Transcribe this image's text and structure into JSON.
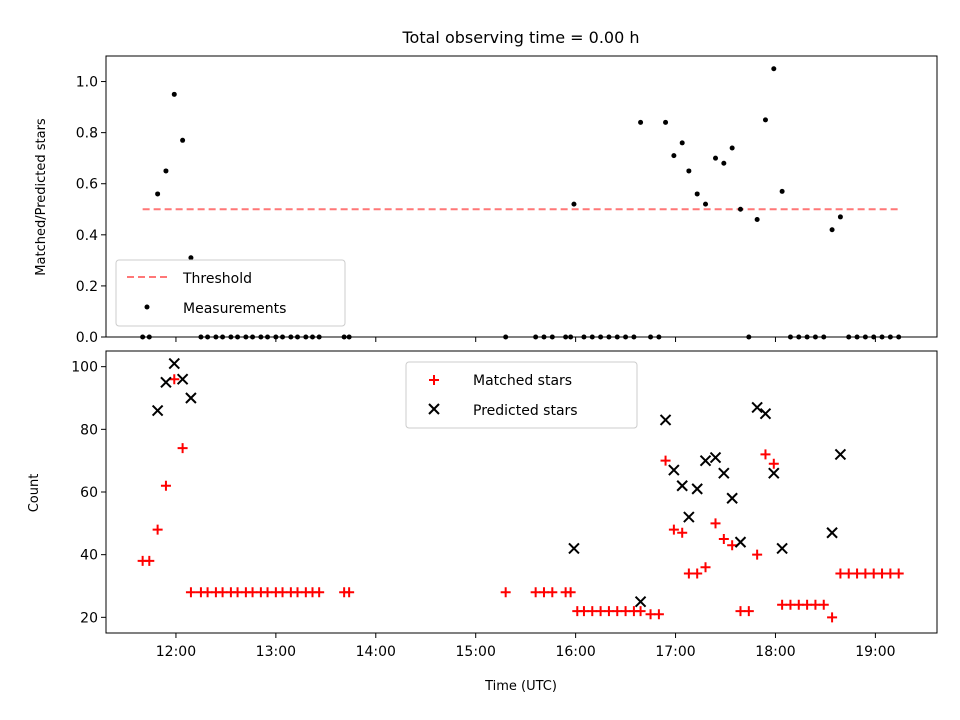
{
  "figure": {
    "title": "Total observing time = 0.00 h"
  },
  "chart_data": [
    {
      "type": "scatter",
      "ylabel": "Matched/Predicted stars",
      "ylim": [
        0,
        1.1
      ],
      "yticks": [
        0.0,
        0.2,
        0.4,
        0.6,
        0.8,
        1.0
      ],
      "ytick_labels": [
        "0.0",
        "0.2",
        "0.4",
        "0.6",
        "0.8",
        "1.0"
      ],
      "xlim": [
        "11:18",
        "19:37"
      ],
      "grid": false,
      "legend_position": "lower-left",
      "threshold": {
        "name": "Threshold",
        "value": 0.5,
        "x": [
          "11:40",
          "19:15"
        ],
        "color": "#ff7777"
      },
      "series": [
        {
          "name": "Measurements",
          "color": "#000000",
          "marker": "dot",
          "points": [
            [
              "11:40",
              0
            ],
            [
              "11:44",
              0
            ],
            [
              "11:49",
              0.56
            ],
            [
              "11:54",
              0.65
            ],
            [
              "11:59",
              0.95
            ],
            [
              "12:04",
              0.77
            ],
            [
              "12:09",
              0.31
            ],
            [
              "12:15",
              0
            ],
            [
              "12:19",
              0
            ],
            [
              "12:24",
              0
            ],
            [
              "12:28",
              0
            ],
            [
              "12:33",
              0
            ],
            [
              "12:37",
              0
            ],
            [
              "12:42",
              0
            ],
            [
              "12:46",
              0
            ],
            [
              "12:51",
              0
            ],
            [
              "12:55",
              0
            ],
            [
              "13:00",
              0
            ],
            [
              "13:04",
              0
            ],
            [
              "13:09",
              0
            ],
            [
              "13:13",
              0
            ],
            [
              "13:18",
              0
            ],
            [
              "13:22",
              0
            ],
            [
              "13:26",
              0
            ],
            [
              "13:41",
              0
            ],
            [
              "13:44",
              0
            ],
            [
              "15:18",
              0
            ],
            [
              "15:36",
              0
            ],
            [
              "15:41",
              0
            ],
            [
              "15:46",
              0
            ],
            [
              "15:54",
              0
            ],
            [
              "15:57",
              0
            ],
            [
              "15:59",
              0.52
            ],
            [
              "16:05",
              0
            ],
            [
              "16:10",
              0
            ],
            [
              "16:15",
              0
            ],
            [
              "16:20",
              0
            ],
            [
              "16:25",
              0
            ],
            [
              "16:30",
              0
            ],
            [
              "16:35",
              0
            ],
            [
              "16:39",
              0.84
            ],
            [
              "16:45",
              0
            ],
            [
              "16:50",
              0
            ],
            [
              "16:54",
              0.84
            ],
            [
              "16:59",
              0.71
            ],
            [
              "17:04",
              0.76
            ],
            [
              "17:08",
              0.65
            ],
            [
              "17:13",
              0.56
            ],
            [
              "17:18",
              0.52
            ],
            [
              "17:24",
              0.7
            ],
            [
              "17:29",
              0.68
            ],
            [
              "17:34",
              0.74
            ],
            [
              "17:39",
              0.5
            ],
            [
              "17:44",
              0
            ],
            [
              "17:49",
              0.46
            ],
            [
              "17:54",
              0.85
            ],
            [
              "17:59",
              1.05
            ],
            [
              "18:04",
              0.57
            ],
            [
              "18:09",
              0
            ],
            [
              "18:14",
              0
            ],
            [
              "18:19",
              0
            ],
            [
              "18:24",
              0
            ],
            [
              "18:29",
              0
            ],
            [
              "18:34",
              0.42
            ],
            [
              "18:39",
              0.47
            ],
            [
              "18:44",
              0
            ],
            [
              "18:49",
              0
            ],
            [
              "18:54",
              0
            ],
            [
              "18:59",
              0
            ],
            [
              "19:04",
              0
            ],
            [
              "19:09",
              0
            ],
            [
              "19:14",
              0
            ]
          ]
        }
      ]
    },
    {
      "type": "scatter",
      "xlabel": "Time (UTC)",
      "ylabel": "Count",
      "ylim": [
        15,
        105
      ],
      "yticks": [
        20,
        40,
        60,
        80,
        100
      ],
      "ytick_labels": [
        "20",
        "40",
        "60",
        "80",
        "100"
      ],
      "xlim": [
        "11:18",
        "19:37"
      ],
      "xticks": [
        "12:00",
        "13:00",
        "14:00",
        "15:00",
        "16:00",
        "17:00",
        "18:00",
        "19:00"
      ],
      "xtick_labels": [
        "12:00",
        "13:00",
        "14:00",
        "15:00",
        "16:00",
        "17:00",
        "18:00",
        "19:00"
      ],
      "grid": false,
      "legend_position": "upper-center",
      "series": [
        {
          "name": "Matched stars",
          "color": "#ff0000",
          "marker": "plus",
          "points": [
            [
              "11:40",
              38
            ],
            [
              "11:44",
              38
            ],
            [
              "11:49",
              48
            ],
            [
              "11:54",
              62
            ],
            [
              "11:59",
              96
            ],
            [
              "12:04",
              74
            ],
            [
              "12:09",
              28
            ],
            [
              "12:15",
              28
            ],
            [
              "12:19",
              28
            ],
            [
              "12:24",
              28
            ],
            [
              "12:28",
              28
            ],
            [
              "12:33",
              28
            ],
            [
              "12:37",
              28
            ],
            [
              "12:42",
              28
            ],
            [
              "12:46",
              28
            ],
            [
              "12:51",
              28
            ],
            [
              "12:55",
              28
            ],
            [
              "13:00",
              28
            ],
            [
              "13:04",
              28
            ],
            [
              "13:09",
              28
            ],
            [
              "13:13",
              28
            ],
            [
              "13:18",
              28
            ],
            [
              "13:22",
              28
            ],
            [
              "13:26",
              28
            ],
            [
              "13:41",
              28
            ],
            [
              "13:44",
              28
            ],
            [
              "15:18",
              28
            ],
            [
              "15:36",
              28
            ],
            [
              "15:41",
              28
            ],
            [
              "15:46",
              28
            ],
            [
              "15:54",
              28
            ],
            [
              "15:57",
              28
            ],
            [
              "16:01",
              22
            ],
            [
              "16:05",
              22
            ],
            [
              "16:10",
              22
            ],
            [
              "16:15",
              22
            ],
            [
              "16:20",
              22
            ],
            [
              "16:25",
              22
            ],
            [
              "16:30",
              22
            ],
            [
              "16:35",
              22
            ],
            [
              "16:39",
              22
            ],
            [
              "16:45",
              21
            ],
            [
              "16:50",
              21
            ],
            [
              "16:54",
              70
            ],
            [
              "16:59",
              48
            ],
            [
              "17:04",
              47
            ],
            [
              "17:08",
              34
            ],
            [
              "17:13",
              34
            ],
            [
              "17:18",
              36
            ],
            [
              "17:24",
              50
            ],
            [
              "17:29",
              45
            ],
            [
              "17:34",
              43
            ],
            [
              "17:39",
              22
            ],
            [
              "17:44",
              22
            ],
            [
              "17:49",
              40
            ],
            [
              "17:54",
              72
            ],
            [
              "17:59",
              69
            ],
            [
              "18:04",
              24
            ],
            [
              "18:09",
              24
            ],
            [
              "18:14",
              24
            ],
            [
              "18:19",
              24
            ],
            [
              "18:24",
              24
            ],
            [
              "18:29",
              24
            ],
            [
              "18:34",
              20
            ],
            [
              "18:39",
              34
            ],
            [
              "18:44",
              34
            ],
            [
              "18:49",
              34
            ],
            [
              "18:54",
              34
            ],
            [
              "18:59",
              34
            ],
            [
              "19:04",
              34
            ],
            [
              "19:09",
              34
            ],
            [
              "19:14",
              34
            ]
          ]
        },
        {
          "name": "Predicted stars",
          "color": "#000000",
          "marker": "x",
          "points": [
            [
              "11:49",
              86
            ],
            [
              "11:54",
              95
            ],
            [
              "11:59",
              101
            ],
            [
              "12:04",
              96
            ],
            [
              "12:09",
              90
            ],
            [
              "15:59",
              42
            ],
            [
              "16:39",
              25
            ],
            [
              "16:54",
              83
            ],
            [
              "16:59",
              67
            ],
            [
              "17:04",
              62
            ],
            [
              "17:08",
              52
            ],
            [
              "17:13",
              61
            ],
            [
              "17:18",
              70
            ],
            [
              "17:24",
              71
            ],
            [
              "17:29",
              66
            ],
            [
              "17:34",
              58
            ],
            [
              "17:39",
              44
            ],
            [
              "17:49",
              87
            ],
            [
              "17:54",
              85
            ],
            [
              "17:59",
              66
            ],
            [
              "18:04",
              42
            ],
            [
              "18:34",
              47
            ],
            [
              "18:39",
              72
            ]
          ]
        }
      ]
    }
  ]
}
